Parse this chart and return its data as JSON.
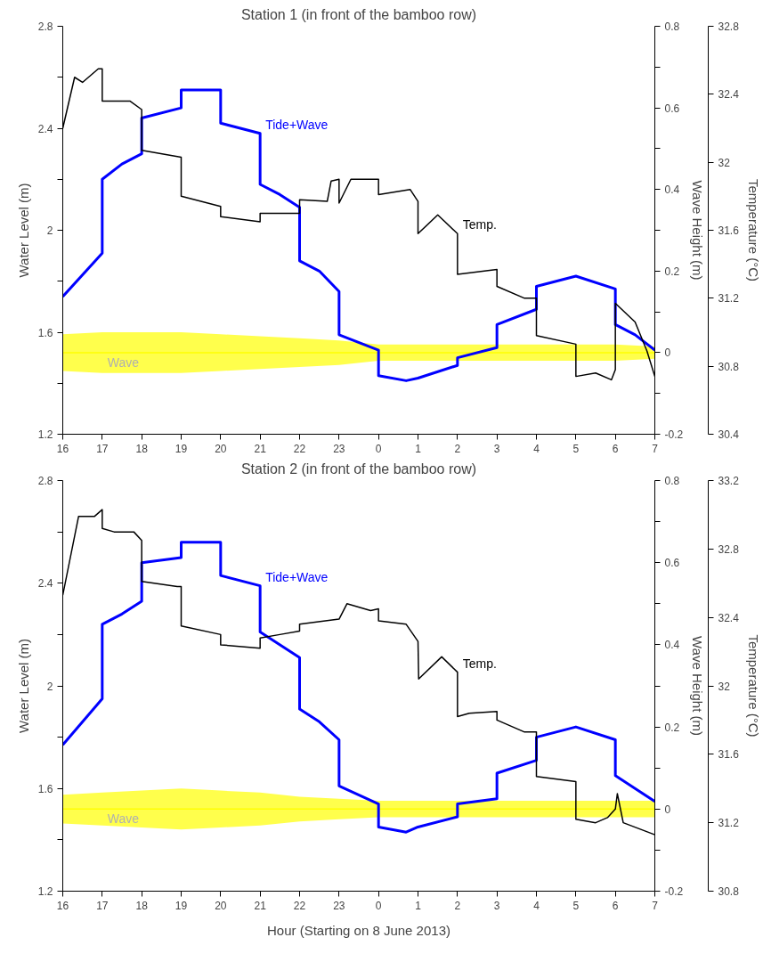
{
  "chart_data": [
    {
      "type": "line",
      "title": "Station 1 (in front of the bamboo row)",
      "ylabel": "Water Level (m)",
      "y2label": "Wave Height (m)",
      "y3label": "Temperature (°C)",
      "xlim": [
        "2013-06-08T16:00",
        "2013-06-09T07:00"
      ],
      "xticks": [
        {
          "value": "2013-06-08T16:00",
          "label": "16"
        },
        {
          "value": "2013-06-08T17:00",
          "label": "17"
        },
        {
          "value": "2013-06-08T18:00",
          "label": "18"
        },
        {
          "value": "2013-06-08T19:00",
          "label": "19"
        },
        {
          "value": "2013-06-08T20:00",
          "label": "20"
        },
        {
          "value": "2013-06-08T21:00",
          "label": "21"
        },
        {
          "value": "2013-06-08T22:00",
          "label": "22"
        },
        {
          "value": "2013-06-08T23:00",
          "label": "23"
        },
        {
          "value": "2013-06-09T00:00",
          "label": "0"
        },
        {
          "value": "2013-06-09T01:00",
          "label": "1"
        },
        {
          "value": "2013-06-09T02:00",
          "label": "2"
        },
        {
          "value": "2013-06-09T03:00",
          "label": "3"
        },
        {
          "value": "2013-06-09T04:00",
          "label": "4"
        },
        {
          "value": "2013-06-09T05:00",
          "label": "5"
        },
        {
          "value": "2013-06-09T06:00",
          "label": "6"
        },
        {
          "value": "2013-06-09T07:00",
          "label": "7"
        }
      ],
      "ylim": [
        1.2,
        2.8
      ],
      "yticks": [
        1.2,
        {
          "value": 1.4,
          "label": null
        },
        1.6,
        {
          "value": 1.8,
          "label": null
        },
        2,
        {
          "value": 2.2,
          "label": null
        },
        2.4,
        {
          "value": 2.6,
          "label": null
        },
        2.8
      ],
      "y2lim": [
        -0.2,
        0.8
      ],
      "y2ticks": [
        -0.2,
        {
          "value": -0.1,
          "label": null
        },
        0,
        {
          "value": 0.1,
          "label": null
        },
        0.2,
        {
          "value": 0.3,
          "label": null
        },
        0.4,
        {
          "value": 0.5,
          "label": null
        },
        0.6,
        {
          "value": 0.7,
          "label": null
        },
        0.8
      ],
      "y3lim": [
        30.4,
        32.8
      ],
      "y3ticks": [
        30.4,
        30.8,
        31.2,
        31.6,
        32,
        32.4,
        32.8
      ],
      "series": [
        {
          "name": "Tide+Wave",
          "color": "#0000ff",
          "x": [
            "2013-06-08T16:00",
            "2013-06-08T17:00",
            "2013-06-08T17:00",
            "2013-06-08T17:30",
            "2013-06-08T18:00",
            "2013-06-08T18:00",
            "2013-06-08T19:00",
            "2013-06-08T19:00",
            "2013-06-08T20:00",
            "2013-06-08T20:00",
            "2013-06-08T21:00",
            "2013-06-08T21:00",
            "2013-06-08T21:30",
            "2013-06-08T22:00",
            "2013-06-08T22:00",
            "2013-06-08T22:30",
            "2013-06-08T23:00",
            "2013-06-08T23:00",
            "2013-06-09T00:00",
            "2013-06-09T00:00",
            "2013-06-09T00:42",
            "2013-06-09T01:00",
            "2013-06-09T02:00",
            "2013-06-09T02:00",
            "2013-06-09T03:00",
            "2013-06-09T03:00",
            "2013-06-09T04:00",
            "2013-06-09T04:00",
            "2013-06-09T05:00",
            "2013-06-09T06:00",
            "2013-06-09T06:00",
            "2013-06-09T06:30",
            "2013-06-09T07:00"
          ],
          "values": [
            1.74,
            1.91,
            2.2,
            2.26,
            2.3,
            2.44,
            2.48,
            2.55,
            2.55,
            2.42,
            2.38,
            2.18,
            2.14,
            2.09,
            1.88,
            1.84,
            1.76,
            1.59,
            1.53,
            1.43,
            1.41,
            1.42,
            1.47,
            1.5,
            1.54,
            1.63,
            1.69,
            1.78,
            1.82,
            1.77,
            1.63,
            1.59,
            1.53
          ]
        },
        {
          "name": "Temp.",
          "color": "#000000",
          "axis": "y3",
          "x": [
            "2013-06-08T16:00",
            "2013-06-08T16:18",
            "2013-06-08T16:30",
            "2013-06-08T16:54",
            "2013-06-08T17:00",
            "2013-06-08T17:00",
            "2013-06-08T17:42",
            "2013-06-08T18:00",
            "2013-06-08T18:00",
            "2013-06-08T19:00",
            "2013-06-08T19:00",
            "2013-06-08T20:00",
            "2013-06-08T20:00",
            "2013-06-08T21:00",
            "2013-06-08T21:00",
            "2013-06-08T22:00",
            "2013-06-08T22:00",
            "2013-06-08T22:42",
            "2013-06-08T22:48",
            "2013-06-08T23:00",
            "2013-06-08T23:00",
            "2013-06-08T23:18",
            "2013-06-09T00:00",
            "2013-06-09T00:00",
            "2013-06-09T00:48",
            "2013-06-09T01:00",
            "2013-06-09T01:00",
            "2013-06-09T01:30",
            "2013-06-09T02:00",
            "2013-06-09T02:00",
            "2013-06-09T03:00",
            "2013-06-09T03:00",
            "2013-06-09T03:42",
            "2013-06-09T04:00",
            "2013-06-09T04:00",
            "2013-06-09T05:00",
            "2013-06-09T05:00",
            "2013-06-09T05:30",
            "2013-06-09T05:54",
            "2013-06-09T06:00",
            "2013-06-09T06:00",
            "2013-06-09T06:30",
            "2013-06-09T06:48",
            "2013-06-09T07:00"
          ],
          "values": [
            32.2,
            32.5,
            32.47,
            32.55,
            32.55,
            32.36,
            32.36,
            32.31,
            32.07,
            32.03,
            31.8,
            31.74,
            31.68,
            31.65,
            31.7,
            31.7,
            31.78,
            31.77,
            31.89,
            31.9,
            31.76,
            31.9,
            31.9,
            31.81,
            31.84,
            31.77,
            31.58,
            31.69,
            31.58,
            31.34,
            31.37,
            31.27,
            31.2,
            31.2,
            30.98,
            30.93,
            30.74,
            30.76,
            30.72,
            30.78,
            31.17,
            31.06,
            30.89,
            30.74
          ]
        },
        {
          "name": "Wave",
          "color": "#ffff00",
          "axis": "y2",
          "x": [
            "2013-06-08T16:00",
            "2013-06-08T17:00",
            "2013-06-08T18:00",
            "2013-06-08T19:00",
            "2013-06-08T20:00",
            "2013-06-08T21:00",
            "2013-06-08T22:00",
            "2013-06-08T23:00",
            "2013-06-09T00:00",
            "2013-06-09T01:00",
            "2013-06-09T02:00",
            "2013-06-09T03:00",
            "2013-06-09T04:00",
            "2013-06-09T05:00",
            "2013-06-09T06:00",
            "2013-06-09T07:00"
          ],
          "values": [
            0,
            0,
            0,
            0,
            0,
            0,
            0,
            0,
            0,
            0,
            0,
            0,
            0,
            0,
            0,
            0
          ],
          "lower": [
            -0.045,
            -0.05,
            -0.05,
            -0.05,
            -0.045,
            -0.04,
            -0.035,
            -0.03,
            -0.02,
            -0.02,
            -0.02,
            -0.02,
            -0.02,
            -0.02,
            -0.02,
            -0.015
          ],
          "upper": [
            0.045,
            0.05,
            0.05,
            0.05,
            0.045,
            0.04,
            0.035,
            0.03,
            0.02,
            0.02,
            0.02,
            0.02,
            0.02,
            0.02,
            0.02,
            0.015
          ]
        }
      ]
    },
    {
      "type": "line",
      "title": "Station 2 (in front of the bamboo row)",
      "xlabel": "Hour (Starting on 8 June 2013)",
      "ylabel": "Water Level (m)",
      "y2label": "Wave Height (m)",
      "y3label": "Temperature (°C)",
      "xlim": [
        "2013-06-08T16:00",
        "2013-06-09T07:00"
      ],
      "xticks": [
        {
          "value": "2013-06-08T16:00",
          "label": "16"
        },
        {
          "value": "2013-06-08T17:00",
          "label": "17"
        },
        {
          "value": "2013-06-08T18:00",
          "label": "18"
        },
        {
          "value": "2013-06-08T19:00",
          "label": "19"
        },
        {
          "value": "2013-06-08T20:00",
          "label": "20"
        },
        {
          "value": "2013-06-08T21:00",
          "label": "21"
        },
        {
          "value": "2013-06-08T22:00",
          "label": "22"
        },
        {
          "value": "2013-06-08T23:00",
          "label": "23"
        },
        {
          "value": "2013-06-09T00:00",
          "label": "0"
        },
        {
          "value": "2013-06-09T01:00",
          "label": "1"
        },
        {
          "value": "2013-06-09T02:00",
          "label": "2"
        },
        {
          "value": "2013-06-09T03:00",
          "label": "3"
        },
        {
          "value": "2013-06-09T04:00",
          "label": "4"
        },
        {
          "value": "2013-06-09T05:00",
          "label": "5"
        },
        {
          "value": "2013-06-09T06:00",
          "label": "6"
        },
        {
          "value": "2013-06-09T07:00",
          "label": "7"
        }
      ],
      "ylim": [
        1.2,
        2.8
      ],
      "yticks": [
        1.2,
        {
          "value": 1.4,
          "label": null
        },
        1.6,
        {
          "value": 1.8,
          "label": null
        },
        2,
        {
          "value": 2.2,
          "label": null
        },
        2.4,
        {
          "value": 2.6,
          "label": null
        },
        2.8
      ],
      "y2lim": [
        -0.2,
        0.8
      ],
      "y2ticks": [
        -0.2,
        {
          "value": -0.1,
          "label": null
        },
        0,
        {
          "value": 0.1,
          "label": null
        },
        0.2,
        {
          "value": 0.3,
          "label": null
        },
        0.4,
        {
          "value": 0.5,
          "label": null
        },
        0.6,
        {
          "value": 0.7,
          "label": null
        },
        0.8
      ],
      "y3lim": [
        30.8,
        33.2
      ],
      "y3ticks": [
        30.8,
        31.2,
        31.6,
        32,
        32.4,
        32.8,
        33.2
      ],
      "series": [
        {
          "name": "Tide+Wave",
          "color": "#0000ff",
          "x": [
            "2013-06-08T16:00",
            "2013-06-08T17:00",
            "2013-06-08T17:00",
            "2013-06-08T17:30",
            "2013-06-08T18:00",
            "2013-06-08T18:00",
            "2013-06-08T19:00",
            "2013-06-08T19:00",
            "2013-06-08T20:00",
            "2013-06-08T20:00",
            "2013-06-08T21:00",
            "2013-06-08T21:00",
            "2013-06-08T22:00",
            "2013-06-08T22:00",
            "2013-06-08T22:30",
            "2013-06-08T23:00",
            "2013-06-08T23:00",
            "2013-06-09T00:00",
            "2013-06-09T00:00",
            "2013-06-09T00:42",
            "2013-06-09T01:00",
            "2013-06-09T02:00",
            "2013-06-09T02:00",
            "2013-06-09T03:00",
            "2013-06-09T03:00",
            "2013-06-09T04:00",
            "2013-06-09T04:00",
            "2013-06-09T05:00",
            "2013-06-09T06:00",
            "2013-06-09T06:00",
            "2013-06-09T06:30",
            "2013-06-09T07:00"
          ],
          "values": [
            1.77,
            1.95,
            2.24,
            2.28,
            2.33,
            2.48,
            2.5,
            2.56,
            2.56,
            2.43,
            2.39,
            2.21,
            2.11,
            1.91,
            1.86,
            1.79,
            1.61,
            1.54,
            1.45,
            1.43,
            1.45,
            1.49,
            1.54,
            1.56,
            1.66,
            1.71,
            1.8,
            1.84,
            1.79,
            1.65,
            1.6,
            1.55
          ]
        },
        {
          "name": "Temp.",
          "color": "#000000",
          "axis": "y3",
          "x": [
            "2013-06-08T16:00",
            "2013-06-08T16:24",
            "2013-06-08T16:48",
            "2013-06-08T17:00",
            "2013-06-08T17:00",
            "2013-06-08T17:18",
            "2013-06-08T17:48",
            "2013-06-08T18:00",
            "2013-06-08T18:00",
            "2013-06-08T18:54",
            "2013-06-08T19:00",
            "2013-06-08T19:00",
            "2013-06-08T20:00",
            "2013-06-08T20:00",
            "2013-06-08T21:00",
            "2013-06-08T21:00",
            "2013-06-08T21:30",
            "2013-06-08T22:00",
            "2013-06-08T22:00",
            "2013-06-08T23:00",
            "2013-06-08T23:12",
            "2013-06-08T23:48",
            "2013-06-09T00:00",
            "2013-06-09T00:00",
            "2013-06-09T00:42",
            "2013-06-09T01:00",
            "2013-06-09T01:01",
            "2013-06-09T01:36",
            "2013-06-09T02:00",
            "2013-06-09T02:00",
            "2013-06-09T02:18",
            "2013-06-09T03:00",
            "2013-06-09T03:00",
            "2013-06-09T03:42",
            "2013-06-09T04:00",
            "2013-06-09T04:00",
            "2013-06-09T04:42",
            "2013-06-09T05:00",
            "2013-06-09T05:00",
            "2013-06-09T05:30",
            "2013-06-09T05:48",
            "2013-06-09T06:00",
            "2013-06-09T06:03",
            "2013-06-09T06:12",
            "2013-06-09T07:00"
          ],
          "values": [
            32.53,
            32.99,
            32.99,
            33.03,
            32.92,
            32.9,
            32.9,
            32.85,
            32.61,
            32.58,
            32.58,
            32.35,
            32.3,
            32.24,
            32.22,
            32.28,
            32.3,
            32.32,
            32.36,
            32.39,
            32.48,
            32.44,
            32.45,
            32.38,
            32.36,
            32.26,
            32.04,
            32.17,
            32.08,
            31.82,
            31.84,
            31.85,
            31.8,
            31.73,
            31.73,
            31.47,
            31.45,
            31.44,
            31.22,
            31.2,
            31.23,
            31.28,
            31.37,
            31.2,
            31.13
          ]
        },
        {
          "name": "Wave",
          "color": "#ffff00",
          "axis": "y2",
          "x": [
            "2013-06-08T16:00",
            "2013-06-08T17:00",
            "2013-06-08T18:00",
            "2013-06-08T19:00",
            "2013-06-08T20:00",
            "2013-06-08T21:00",
            "2013-06-08T22:00",
            "2013-06-08T23:00",
            "2013-06-09T00:00",
            "2013-06-09T01:00",
            "2013-06-09T02:00",
            "2013-06-09T03:00",
            "2013-06-09T04:00",
            "2013-06-09T05:00",
            "2013-06-09T06:00",
            "2013-06-09T07:00"
          ],
          "values": [
            0,
            0,
            0,
            0,
            0,
            0,
            0,
            0,
            0,
            0,
            0,
            0,
            0,
            0,
            0,
            0
          ],
          "lower": [
            -0.035,
            -0.04,
            -0.045,
            -0.05,
            -0.045,
            -0.04,
            -0.03,
            -0.025,
            -0.02,
            -0.02,
            -0.02,
            -0.02,
            -0.02,
            -0.02,
            -0.02,
            -0.02
          ],
          "upper": [
            0.035,
            0.04,
            0.045,
            0.05,
            0.045,
            0.04,
            0.03,
            0.025,
            0.02,
            0.02,
            0.02,
            0.02,
            0.02,
            0.02,
            0.02,
            0.02
          ]
        }
      ]
    }
  ]
}
